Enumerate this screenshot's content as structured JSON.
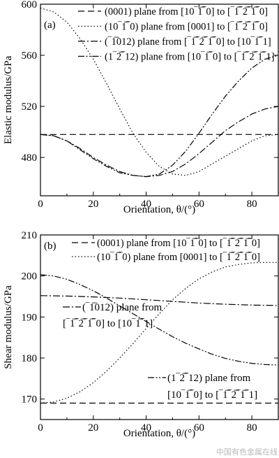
{
  "chart_data": [
    {
      "type": "line",
      "panel_label": "(a)",
      "xlabel": "Orientation, θ/(°)",
      "ylabel": "Elastic modulus/GPa",
      "xlim": [
        0,
        90
      ],
      "ylim": [
        450,
        600
      ],
      "xticks": [
        0,
        20,
        40,
        60,
        80
      ],
      "yticks": [
        480,
        520,
        560,
        600
      ],
      "legend_position": "top-right",
      "series": [
        {
          "name": "(0001) plane from [10‾1̅‾0] to [‾1̅‾2̅‾1̅‾0]",
          "label_text": "(0001) plane from [10",
          "dash": "dashed",
          "x": [
            0,
            15,
            30,
            45,
            60,
            75,
            90
          ],
          "y": [
            498,
            498,
            498,
            498,
            498,
            498,
            498
          ]
        },
        {
          "name": "(10‾1̅‾0) plane from [0001] to [‾1̅‾2̅‾1̅‾0]",
          "dash": "dotted",
          "x": [
            0,
            5,
            10,
            15,
            20,
            25,
            30,
            35,
            40,
            45,
            50,
            55,
            60,
            65,
            70,
            75,
            80,
            85,
            90
          ],
          "y": [
            597,
            594,
            586,
            573,
            557,
            538,
            518,
            499,
            484,
            473,
            467,
            466,
            469,
            475,
            481,
            487,
            493,
            497,
            498
          ]
        },
        {
          "name": "(‾1̅012) plane from [‾1̅‾2̅‾1̅‾0] to [10‾1̅‾1]",
          "dash": "dash-dot",
          "x": [
            0,
            5,
            10,
            15,
            20,
            25,
            30,
            35,
            40,
            45,
            50,
            55,
            60,
            65,
            70,
            75,
            80,
            85,
            90
          ],
          "y": [
            498,
            497,
            493,
            487,
            480,
            474,
            469,
            466,
            465,
            466,
            469,
            475,
            483,
            492,
            501,
            508,
            514,
            518,
            520
          ]
        },
        {
          "name": "(1‾2̅‾12) plane from [10‾1̅‾0] to [‾1̅‾2̅‾1̅‾1]",
          "dash": "dash-dot-dot",
          "x": [
            0,
            5,
            10,
            15,
            20,
            25,
            30,
            35,
            40,
            45,
            50,
            55,
            60,
            65,
            70,
            75,
            80,
            85,
            90
          ],
          "y": [
            498,
            497,
            493,
            486,
            479,
            473,
            468,
            466,
            465,
            467,
            474,
            485,
            499,
            514,
            528,
            540,
            550,
            557,
            560
          ]
        }
      ]
    },
    {
      "type": "line",
      "panel_label": "(b)",
      "xlabel": "Orientation, θ/(°)",
      "ylabel": "Shear modulus/GPa",
      "xlim": [
        0,
        90
      ],
      "ylim": [
        165,
        210
      ],
      "xticks": [
        0,
        20,
        40,
        60,
        80
      ],
      "yticks": [
        170,
        180,
        190,
        200,
        210
      ],
      "legend_position": "top-right",
      "series": [
        {
          "name": "(0001) plane from [10‾1̅‾0] to [‾1̅‾2̅‾1̅‾0]",
          "dash": "dashed",
          "x": [
            0,
            15,
            30,
            45,
            60,
            75,
            90
          ],
          "y": [
            169,
            169,
            169,
            169,
            169,
            169,
            169
          ]
        },
        {
          "name": "(10‾1̅‾0) plane from [0001] to [‾1̅‾2̅‾1̅‾0]",
          "dash": "dotted",
          "x": [
            0,
            5,
            10,
            15,
            20,
            25,
            30,
            35,
            40,
            45,
            50,
            55,
            60,
            65,
            70,
            75,
            80,
            85,
            90
          ],
          "y": [
            169,
            169.3,
            170.2,
            171.8,
            174,
            176.8,
            180,
            183.5,
            187.2,
            190.8,
            194.2,
            197,
            199.3,
            201,
            202.2,
            202.8,
            203.2,
            203.3,
            203.3
          ]
        },
        {
          "name": "(‾1̅012) plane from [‾1̅‾2̅‾1̅‾0] to [10‾1̅‾1]",
          "dash": "dash-dot",
          "x": [
            0,
            10,
            20,
            30,
            40,
            50,
            60,
            70,
            80,
            90
          ],
          "y": [
            195.2,
            195.1,
            194.9,
            194.6,
            194.2,
            193.8,
            193.4,
            193.1,
            192.9,
            192.8
          ]
        },
        {
          "name": "(1‾2̅‾12) plane from [10‾1̅‾0] to [‾1̅‾2̅‾1̅‾1]",
          "dash": "dash-dot-dot",
          "x": [
            0,
            5,
            10,
            15,
            20,
            25,
            30,
            35,
            40,
            45,
            50,
            55,
            60,
            65,
            70,
            75,
            80,
            85,
            90
          ],
          "y": [
            200.3,
            200,
            199.2,
            197.9,
            196.4,
            194.6,
            192.7,
            190.8,
            188.9,
            187,
            185.2,
            183.6,
            182.2,
            180.9,
            179.9,
            179.2,
            178.7,
            178.4,
            178.3
          ]
        }
      ]
    }
  ],
  "panel_b_labels": {
    "l1012_line1": "(‾1̅012) plane from",
    "l1012_line2": "[‾1̅‾2̅‾1̅‾0] to [10‾1̅‾1]",
    "l1212_line1": "(1‾2̅‾12) plane from",
    "l1212_line2": "[10‾1̅‾0] to [‾1̅‾2̅‾1̅‾1]"
  },
  "watermark": "中国有色金属在线"
}
